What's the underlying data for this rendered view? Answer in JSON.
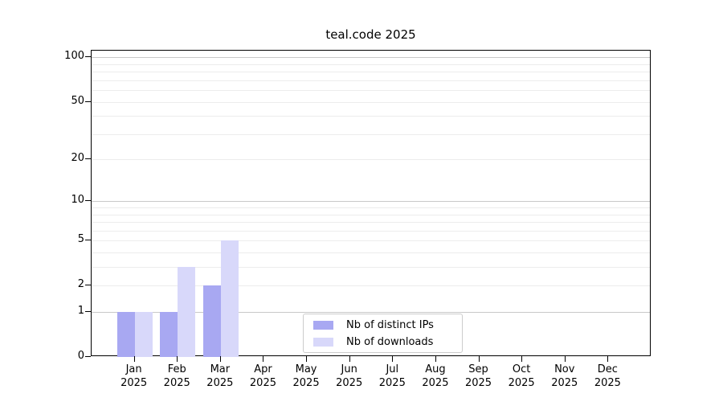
{
  "chart_data": {
    "type": "bar",
    "title": "teal.code 2025",
    "categories": [
      "Jan",
      "Feb",
      "Mar",
      "Apr",
      "May",
      "Jun",
      "Jul",
      "Aug",
      "Sep",
      "Oct",
      "Nov",
      "Dec"
    ],
    "year_label": "2025",
    "series": [
      {
        "name": "Nb of distinct IPs",
        "color": "#a8a8f2",
        "values": [
          1,
          1,
          2,
          0,
          0,
          0,
          0,
          0,
          0,
          0,
          0,
          0
        ]
      },
      {
        "name": "Nb of downloads",
        "color": "#d8d8fa",
        "values": [
          1,
          3,
          5,
          0,
          0,
          0,
          0,
          0,
          0,
          0,
          0,
          0
        ]
      }
    ],
    "xlabel": "",
    "ylabel": "",
    "y_scale": "log1p",
    "ylim": [
      0,
      111
    ],
    "y_ticks": [
      0,
      1,
      2,
      5,
      10,
      20,
      50,
      100
    ],
    "y_major_gridlines": [
      1,
      10,
      100
    ],
    "y_minor_gridlines": [
      2,
      3,
      4,
      5,
      6,
      7,
      8,
      9,
      20,
      30,
      40,
      50,
      60,
      70,
      80,
      90
    ],
    "grid": "on",
    "legend_position": "lower center inside",
    "colors": {
      "major_grid": "#c9c9c9",
      "minor_grid": "#ececec",
      "axis": "#000000",
      "text": "#000000",
      "background": "#ffffff",
      "legend_border": "#cccccc"
    }
  }
}
